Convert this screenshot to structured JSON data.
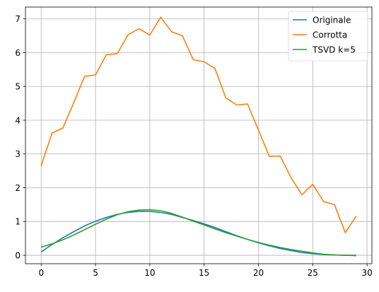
{
  "chart_data": {
    "type": "line",
    "title": "",
    "xlabel": "",
    "ylabel": "",
    "xlim": [
      -1.45,
      30.45
    ],
    "ylim": [
      -0.25,
      7.35
    ],
    "xticks": [
      0,
      5,
      10,
      15,
      20,
      25,
      30
    ],
    "yticks": [
      0,
      1,
      2,
      3,
      4,
      5,
      6,
      7
    ],
    "grid": true,
    "legend": "top-right",
    "x": [
      0,
      1,
      2,
      3,
      4,
      5,
      6,
      7,
      8,
      9,
      10,
      11,
      12,
      13,
      14,
      15,
      16,
      17,
      18,
      19,
      20,
      21,
      22,
      23,
      24,
      25,
      26,
      27,
      28,
      29
    ],
    "series": [
      {
        "name": "Originale",
        "color": "#1f77b4",
        "values": [
          0.1,
          0.32,
          0.52,
          0.7,
          0.87,
          1.01,
          1.12,
          1.21,
          1.27,
          1.3,
          1.3,
          1.27,
          1.21,
          1.12,
          1.03,
          0.93,
          0.82,
          0.7,
          0.58,
          0.47,
          0.37,
          0.28,
          0.2,
          0.14,
          0.08,
          0.05,
          0.02,
          0.01,
          0.0,
          0.0
        ]
      },
      {
        "name": "Corrotta",
        "color": "#ff7f0e",
        "values": [
          2.65,
          3.62,
          3.77,
          4.52,
          5.3,
          5.34,
          5.94,
          5.97,
          6.53,
          6.71,
          6.52,
          7.05,
          6.62,
          6.5,
          5.79,
          5.73,
          5.53,
          4.66,
          4.45,
          4.48,
          3.71,
          2.93,
          2.94,
          2.3,
          1.79,
          2.1,
          1.59,
          1.5,
          0.67,
          1.16
        ]
      },
      {
        "name": "TSVD k=5",
        "color": "#2ca02c",
        "values": [
          0.24,
          0.34,
          0.46,
          0.6,
          0.76,
          0.92,
          1.07,
          1.2,
          1.29,
          1.34,
          1.35,
          1.32,
          1.24,
          1.13,
          1.01,
          0.9,
          0.78,
          0.67,
          0.57,
          0.47,
          0.38,
          0.3,
          0.23,
          0.17,
          0.12,
          0.07,
          0.03,
          0.01,
          0.0,
          -0.01
        ]
      }
    ]
  }
}
